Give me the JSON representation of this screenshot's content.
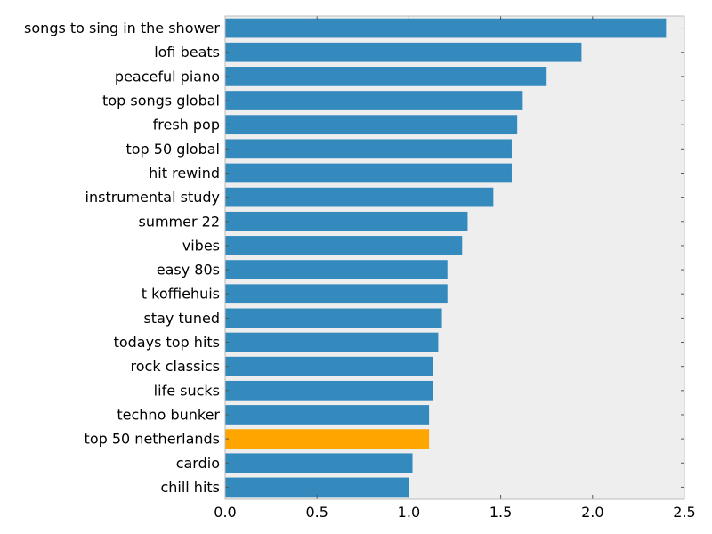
{
  "chart_data": {
    "type": "bar",
    "orientation": "horizontal",
    "categories": [
      "songs to sing in the shower",
      "lofi beats",
      "peaceful piano",
      "top songs global",
      "fresh pop",
      "top 50 global",
      "hit rewind",
      "instrumental study",
      "summer 22",
      "vibes",
      "easy 80s",
      "t koffiehuis",
      "stay tuned",
      "todays top hits",
      "rock classics",
      "life sucks",
      "techno bunker",
      "top 50 netherlands",
      "cardio",
      "chill hits"
    ],
    "values": [
      2.4,
      1.94,
      1.75,
      1.62,
      1.59,
      1.56,
      1.56,
      1.46,
      1.32,
      1.29,
      1.21,
      1.21,
      1.18,
      1.16,
      1.13,
      1.13,
      1.11,
      1.11,
      1.02,
      1.0
    ],
    "highlight_category": "top 50 netherlands",
    "colors": {
      "bar": "#348abd",
      "highlight": "#ffa500",
      "plot_background": "#eeeeee",
      "axis": "#bcbcbc"
    },
    "title": "",
    "xlabel": "",
    "ylabel": "",
    "xlim": [
      0,
      2.5
    ],
    "xticks": [
      0.0,
      0.5,
      1.0,
      1.5,
      2.0,
      2.5
    ],
    "xtick_labels": [
      "0.0",
      "0.5",
      "1.0",
      "1.5",
      "2.0",
      "2.5"
    ],
    "grid": false,
    "legend": "none"
  }
}
